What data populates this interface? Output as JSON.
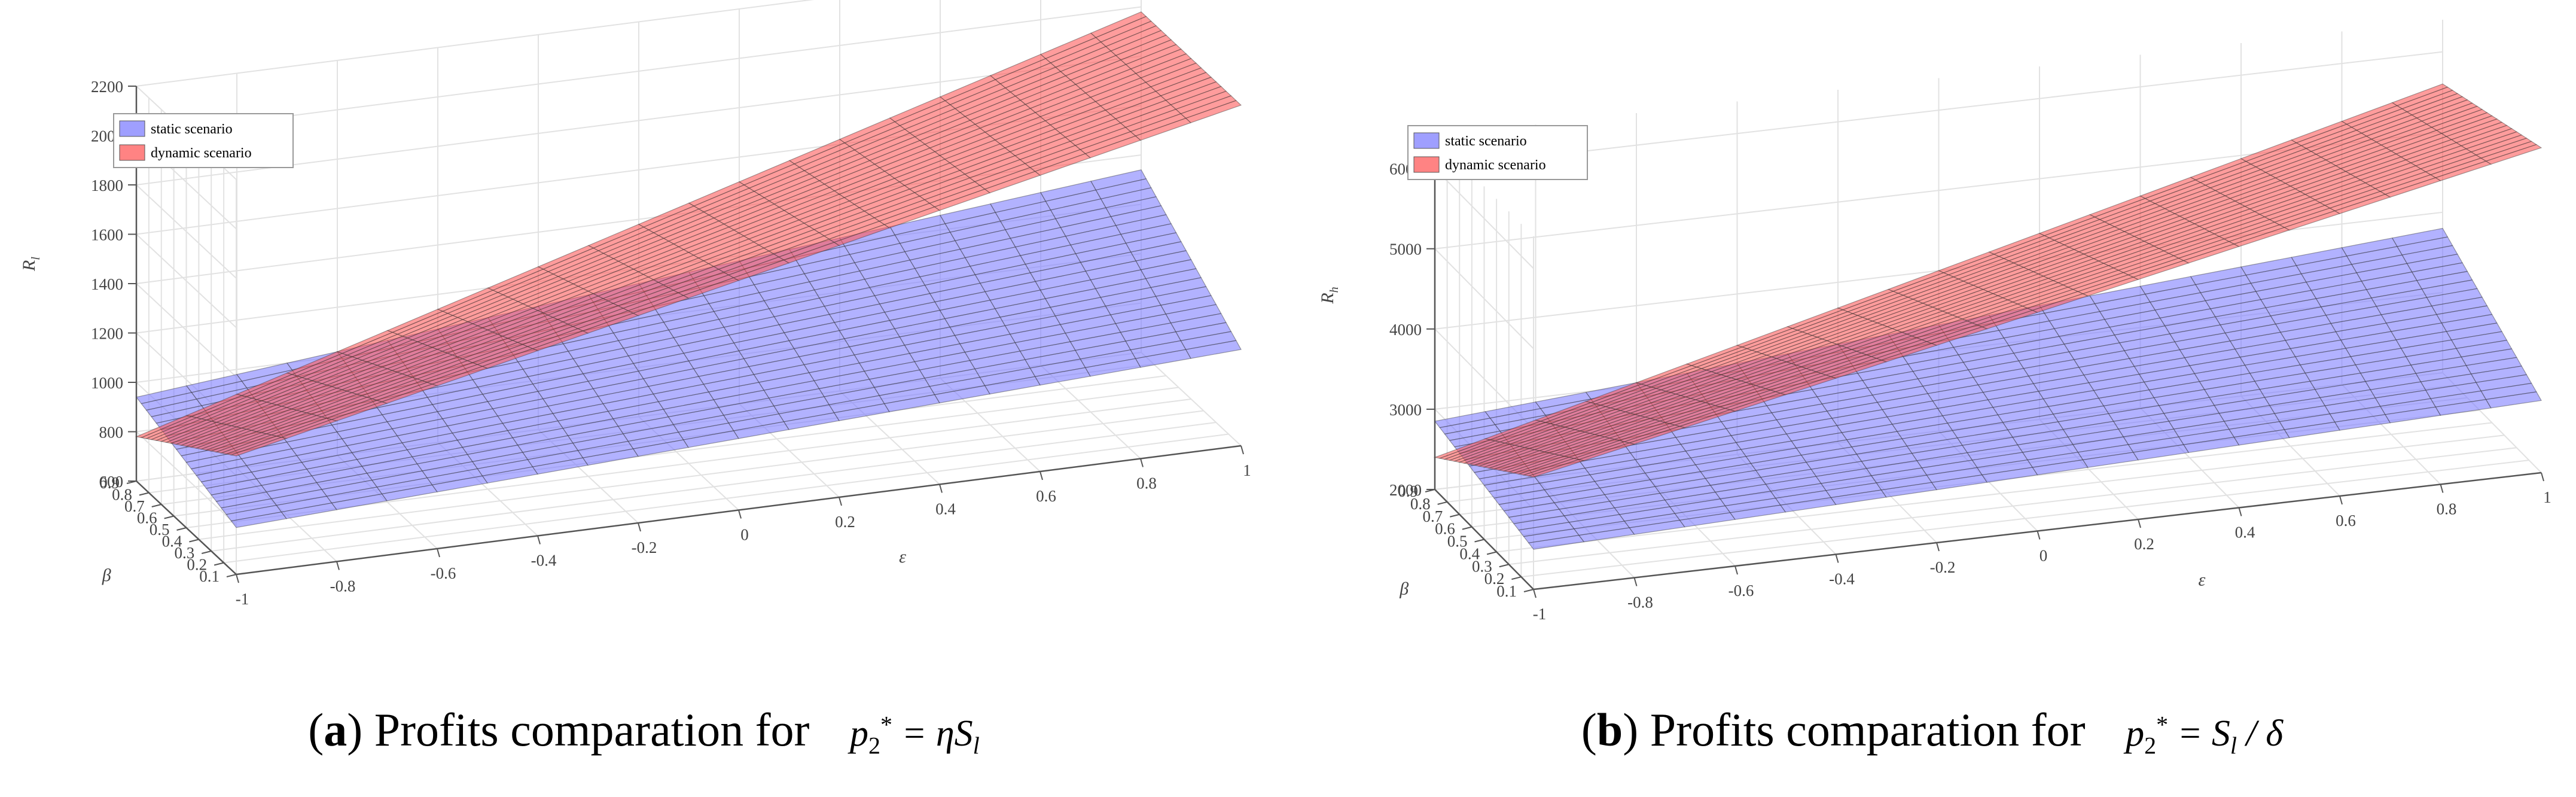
{
  "colors": {
    "static": "#7f7fff",
    "dynamic": "#ff5a5a",
    "grid": "#e2e2e2",
    "axis": "#555555",
    "mesh": "#333333"
  },
  "chart_data": [
    {
      "type": "surface3d",
      "panel": "a",
      "xlabel": "ε",
      "ylabel": "β",
      "zlabel": "R_l",
      "zlabel_main": "R",
      "zlabel_sub": "l",
      "xlim": [
        -1,
        1
      ],
      "ylim": [
        0.1,
        0.9
      ],
      "zlim": [
        600,
        2200
      ],
      "x_ticks": [
        "-1",
        "-0.8",
        "-0.6",
        "-0.4",
        "-0.2",
        "0",
        "0.2",
        "0.4",
        "0.6",
        "0.8",
        "1"
      ],
      "y_ticks": [
        "0.1",
        "0.2",
        "0.3",
        "0.4",
        "0.5",
        "0.6",
        "0.7",
        "0.8",
        "0.9"
      ],
      "z_ticks": [
        "600",
        "800",
        "1000",
        "1200",
        "1400",
        "1600",
        "1800",
        "2000",
        "2200"
      ],
      "legend": [
        "static scenario",
        "dynamic scenario"
      ],
      "series": [
        {
          "name": "static scenario",
          "corners": {
            "xmin_ymin": 790,
            "xmax_ymin": 990,
            "xmin_ymax": 940,
            "xmax_ymax": 1340
          }
        },
        {
          "name": "dynamic scenario",
          "corners": {
            "xmin_ymin": 1080,
            "xmax_ymin": 1980,
            "xmin_ymax": 780,
            "xmax_ymax": 1980
          }
        }
      ],
      "caption": {
        "tag": "a",
        "text": "Profits comparation for",
        "formula": {
          "var": "p",
          "sub": "2",
          "sup": "*",
          "rhs": "= ηS",
          "rhs_sub": "l",
          "rhs_tail": ""
        }
      }
    },
    {
      "type": "surface3d",
      "panel": "b",
      "xlabel": "ε",
      "ylabel": "β",
      "zlabel": "R_h",
      "zlabel_main": "R",
      "zlabel_sub": "h",
      "xlim": [
        -1,
        1
      ],
      "ylim": [
        0.1,
        0.9
      ],
      "zlim": [
        2000,
        6400
      ],
      "x_ticks": [
        "-1",
        "-0.8",
        "-0.6",
        "-0.4",
        "-0.2",
        "0",
        "0.2",
        "0.4",
        "0.6",
        "0.8",
        "1"
      ],
      "y_ticks": [
        "0.1",
        "0.2",
        "0.3",
        "0.4",
        "0.5",
        "0.6",
        "0.7",
        "0.8",
        "0.9"
      ],
      "z_ticks": [
        "2000",
        "3000",
        "4000",
        "5000",
        "6000"
      ],
      "legend": [
        "static scenario",
        "dynamic scenario"
      ],
      "series": [
        {
          "name": "static scenario",
          "corners": {
            "xmin_ymin": 2500,
            "xmax_ymin": 2900,
            "xmin_ymax": 2850,
            "xmax_ymax": 3800
          }
        },
        {
          "name": "dynamic scenario",
          "corners": {
            "xmin_ymin": 3400,
            "xmax_ymin": 6050,
            "xmin_ymax": 2400,
            "xmax_ymax": 5600
          }
        }
      ],
      "caption": {
        "tag": "b",
        "text": "Profits comparation for",
        "formula": {
          "var": "p",
          "sub": "2",
          "sup": "*",
          "rhs": "= S",
          "rhs_sub": "l",
          "rhs_tail": "/ δ"
        }
      }
    }
  ]
}
